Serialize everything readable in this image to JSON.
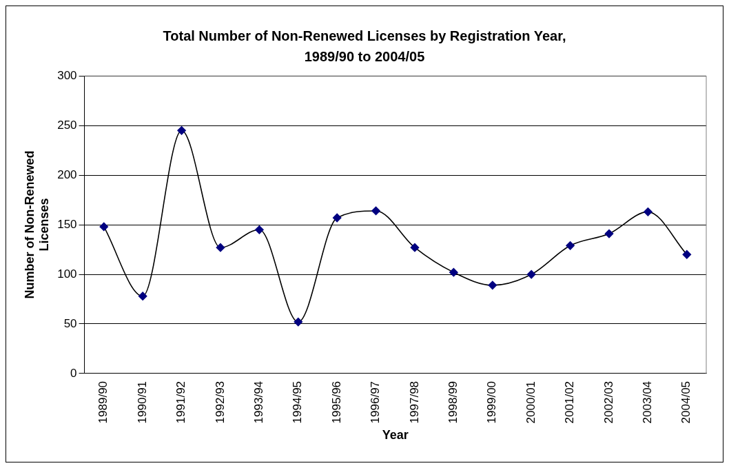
{
  "chart_data": {
    "type": "line",
    "title": "Total Number of Non-Renewed Licenses by Registration Year, 1989/90 to 2004/05",
    "xlabel": "Year",
    "ylabel": "Number of Non-Renewed Licenses",
    "categories": [
      "1989/90",
      "1990/91",
      "1991/92",
      "1992/93",
      "1993/94",
      "1994/95",
      "1995/96",
      "1996/97",
      "1997/98",
      "1998/99",
      "1999/00",
      "2000/01",
      "2001/02",
      "2002/03",
      "2003/04",
      "2004/05"
    ],
    "series": [
      {
        "color": "#000000",
        "colors": [
          "#000080",
          "#000080",
          "#000080",
          "#000080",
          "#000080",
          "#000080",
          "#000080",
          "#000080",
          "#000080",
          "#000080",
          "#000080",
          "#000080",
          "#000080",
          "#000080",
          "#000080",
          "#000080"
        ],
        "values": [
          148,
          78,
          245,
          127,
          145,
          52,
          157,
          164,
          127,
          102,
          89,
          100,
          129,
          141,
          163,
          120
        ]
      }
    ],
    "ylim": [
      0,
      300
    ],
    "yticks": [
      0,
      50,
      100,
      150,
      200,
      250,
      300
    ],
    "grid": "y",
    "legend": false,
    "marker": "diamond",
    "line_style": "solid"
  }
}
